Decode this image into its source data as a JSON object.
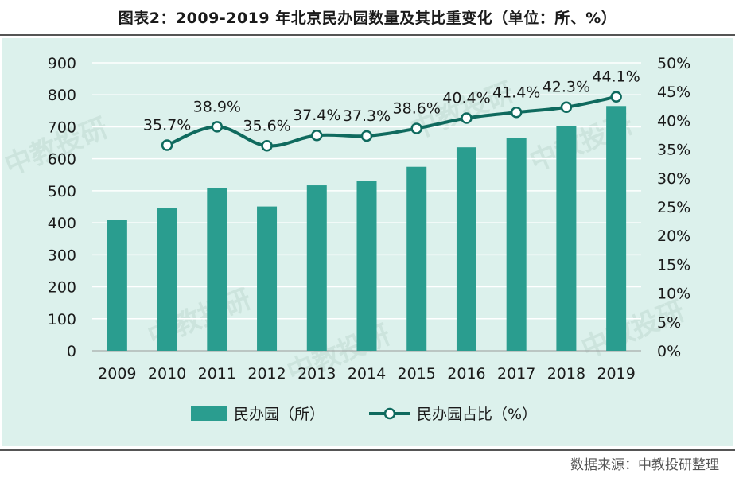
{
  "title": "图表2：2009-2019 年北京民办园数量及其比重变化（单位：所、%）",
  "source": "数据来源：中教投研整理",
  "watermark": "中教投研",
  "colors": {
    "bar": "#2a9d8f",
    "line": "#0f6a5e",
    "panel": "#dcf1ec",
    "grid": "#ffffff"
  },
  "chart_data": {
    "type": "bar+line",
    "categories": [
      "2009",
      "2010",
      "2011",
      "2012",
      "2013",
      "2014",
      "2015",
      "2016",
      "2017",
      "2018",
      "2019"
    ],
    "series": [
      {
        "name": "民办园（所）",
        "type": "bar",
        "axis": "left",
        "values": [
          408,
          445,
          508,
          451,
          517,
          531,
          575,
          636,
          665,
          702,
          765
        ]
      },
      {
        "name": "民办园占比（%）",
        "type": "line",
        "axis": "right",
        "values": [
          null,
          35.7,
          38.9,
          35.6,
          37.4,
          37.3,
          38.6,
          40.4,
          41.4,
          42.3,
          44.1
        ],
        "labels": [
          "",
          "35.7%",
          "38.9%",
          "35.6%",
          "37.4%",
          "37.3%",
          "38.6%",
          "40.4%",
          "41.4%",
          "42.3%",
          "44.1%"
        ]
      }
    ],
    "y_left": {
      "min": 0,
      "max": 900,
      "ticks": [
        "0",
        "100",
        "200",
        "300",
        "400",
        "500",
        "600",
        "700",
        "800",
        "900"
      ]
    },
    "y_right": {
      "min": 0,
      "max": 50,
      "ticks": [
        "0%",
        "5%",
        "10%",
        "15%",
        "20%",
        "25%",
        "30%",
        "35%",
        "40%",
        "45%",
        "50%"
      ]
    },
    "legend": [
      "民办园（所）",
      "民办园占比（%）"
    ],
    "grid": true
  }
}
